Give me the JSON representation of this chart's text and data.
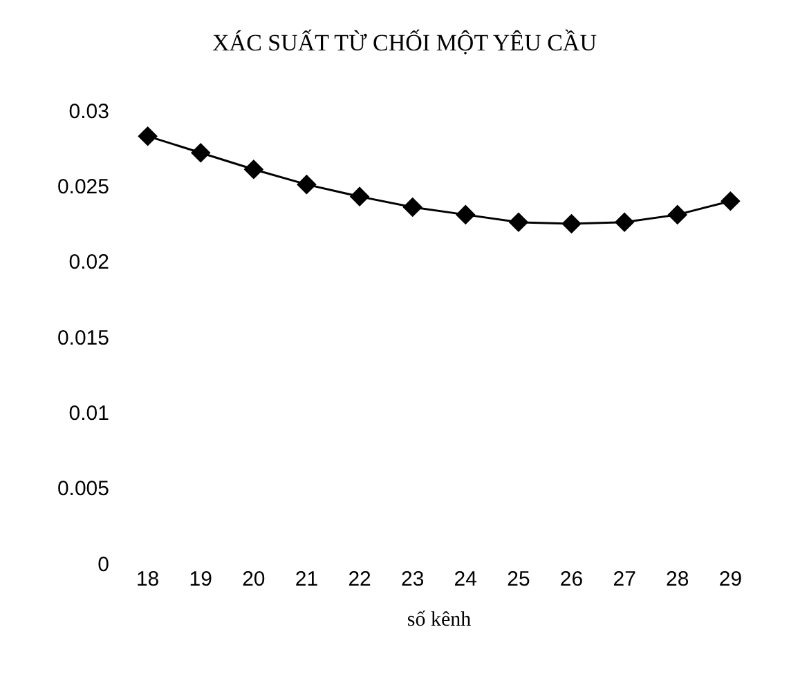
{
  "chart_data": {
    "type": "line",
    "title": "XÁC SUẤT TỪ CHỐI MỘT YÊU CẦU",
    "xlabel": "số kênh",
    "categories": [
      "18",
      "19",
      "20",
      "21",
      "22",
      "23",
      "24",
      "25",
      "26",
      "27",
      "28",
      "29"
    ],
    "series": [
      {
        "color": "#000000",
        "values": [
          0.0283,
          0.0272,
          0.0261,
          0.0251,
          0.0243,
          0.0236,
          0.0231,
          0.0226,
          0.0225,
          0.0226,
          0.0231,
          0.024
        ]
      }
    ],
    "ylim": [
      0,
      0.03
    ],
    "yticks": [
      0,
      0.005,
      0.01,
      0.015,
      0.02,
      0.025,
      0.03
    ],
    "legend": false,
    "marker": "diamond",
    "line_style": "solid"
  }
}
